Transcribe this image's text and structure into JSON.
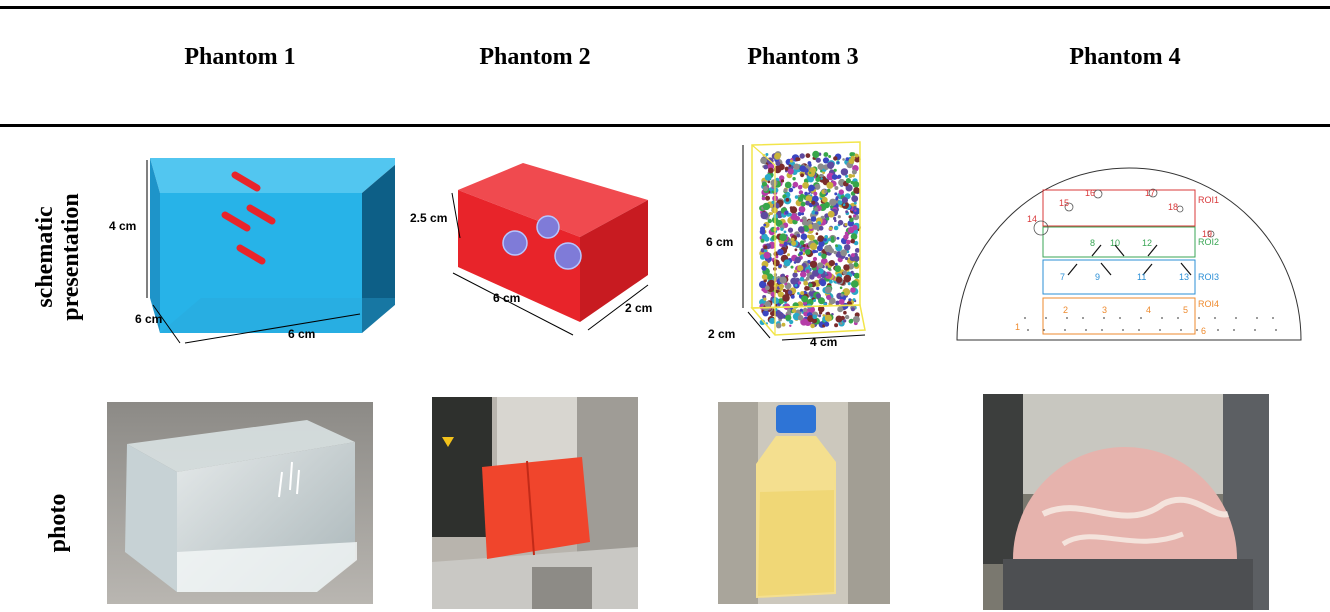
{
  "columns": [
    "Phantom 1",
    "Phantom 2",
    "Phantom 3",
    "Phantom 4"
  ],
  "rows": {
    "schematic": [
      "schematic",
      "presentation"
    ],
    "photo": "photo"
  },
  "phantom1": {
    "height": "4 cm",
    "depth": "6 cm",
    "width": "6 cm"
  },
  "phantom2": {
    "height": "2.5 cm",
    "length": "6 cm",
    "width": "2 cm"
  },
  "phantom3": {
    "height": "6 cm",
    "depth": "2 cm",
    "width": "4 cm"
  },
  "phantom4": {
    "rois": [
      "ROI1",
      "ROI2",
      "ROI3",
      "ROI4"
    ],
    "inserts": [
      "1",
      "2",
      "3",
      "4",
      "5",
      "6",
      "7",
      "8",
      "9",
      "10",
      "11",
      "12",
      "13",
      "14",
      "15",
      "16",
      "17",
      "18",
      "19"
    ]
  },
  "colors": {
    "cube_blue": "#27b3e8",
    "cube_red": "#e8242a",
    "roi1": "#d9383a",
    "roi2": "#3aa655",
    "roi3": "#2b8fd6",
    "roi4": "#ee8a2d"
  }
}
